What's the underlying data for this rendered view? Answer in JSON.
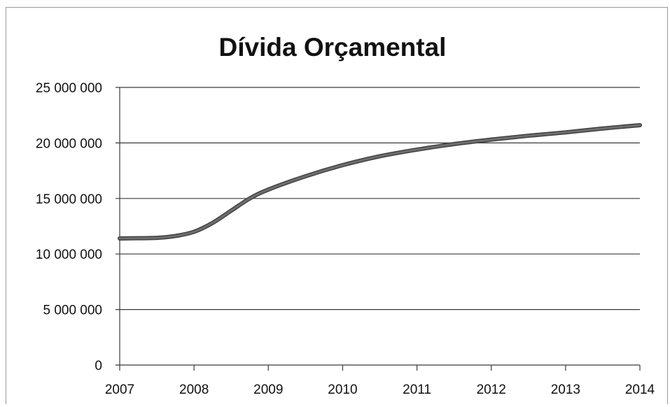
{
  "chart_data": {
    "type": "line",
    "title": "Dívida Orçamental",
    "xlabel": "",
    "ylabel": "",
    "x": [
      2007,
      2007.25,
      2007.5,
      2007.75,
      2008,
      2008.25,
      2008.5,
      2008.75,
      2009,
      2009.5,
      2010,
      2010.5,
      2011,
      2011.5,
      2012,
      2012.5,
      2013,
      2013.5,
      2014
    ],
    "series": [
      {
        "values": [
          11400000,
          11420000,
          11450000,
          11620000,
          12000000,
          12800000,
          13900000,
          15000000,
          15800000,
          17000000,
          18000000,
          18800000,
          19400000,
          19900000,
          20300000,
          20650000,
          20950000,
          21300000,
          21600000
        ],
        "color": "#6d6d6d"
      }
    ],
    "xlim": [
      2007,
      2014
    ],
    "ylim": [
      0,
      25000000
    ],
    "x_ticks": [
      "2007",
      "2008",
      "2009",
      "2010",
      "2011",
      "2012",
      "2013",
      "2014"
    ],
    "y_ticks": [
      "0",
      "5 000 000",
      "10 000 000",
      "15 000 000",
      "20 000 000",
      "25 000 000"
    ],
    "y_tick_values": [
      0,
      5000000,
      10000000,
      15000000,
      20000000,
      25000000
    ],
    "x_tick_values": [
      2007,
      2008,
      2009,
      2010,
      2011,
      2012,
      2013,
      2014
    ],
    "grid": true,
    "legend": "none"
  }
}
